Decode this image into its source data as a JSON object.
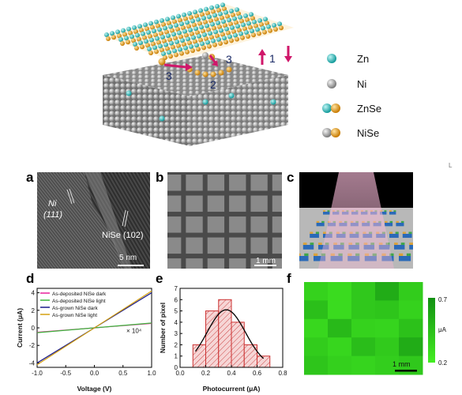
{
  "schematic": {
    "step_labels": [
      "1",
      "2",
      "3",
      "3"
    ],
    "legend": [
      {
        "label": "Zn",
        "icon": "zn-atom-icon"
      },
      {
        "label": "Ni",
        "icon": "ni-atom-icon"
      },
      {
        "label": "ZnSe",
        "icon": "znse-pair-icon"
      },
      {
        "label": "NiSe",
        "icon": "nise-pair-icon"
      }
    ],
    "corner_mark": "L"
  },
  "panels": {
    "a": {
      "letter": "a",
      "text1_line1": "Ni",
      "text1_line2": "(111)",
      "text2": "NiSe (102)",
      "scale": "5 nm"
    },
    "b": {
      "letter": "b",
      "scale": "1 mm"
    },
    "c": {
      "letter": "c"
    },
    "d": {
      "letter": "d"
    },
    "e": {
      "letter": "e"
    },
    "f": {
      "letter": "f",
      "scale": "1 mm",
      "colorbar_max": "0.7",
      "colorbar_min": "0.2",
      "colorbar_unit": "μA"
    }
  },
  "colors": {
    "zn": "#2ec9c9",
    "ni": "#a0a0a0",
    "se": "#f0a020",
    "arrow": "#d0176a",
    "map_low": "#33dd22",
    "map_high": "#1a9e1a"
  },
  "chart_data": [
    {
      "type": "line",
      "panel": "d",
      "xlabel": "Voltage (V)",
      "ylabel": "Current (μA)",
      "xlim": [
        -1.0,
        1.0
      ],
      "ylim": [
        -4.5,
        4.5
      ],
      "xticks": [
        "-1.0",
        "-0.5",
        "0.0",
        "0.5",
        "1.0"
      ],
      "yticks": [
        "-4",
        "-2",
        "0",
        "2",
        "4"
      ],
      "annotation": "× 10⁴",
      "series": [
        {
          "name": "As-deposited NiSe dark",
          "color": "#e8209a",
          "x": [
            -1.0,
            1.0
          ],
          "y": [
            -0.5,
            0.5
          ]
        },
        {
          "name": "As-deposited NiSe light",
          "color": "#3cb43c",
          "x": [
            -1.0,
            1.0
          ],
          "y": [
            -0.55,
            0.55
          ]
        },
        {
          "name": "As-grown NiSe dark",
          "color": "#1a1a8c",
          "x": [
            -1.0,
            1.0
          ],
          "y": [
            -4.0,
            4.0
          ]
        },
        {
          "name": "As-grown NiSe light",
          "color": "#d4a010",
          "x": [
            -1.0,
            1.0
          ],
          "y": [
            -4.2,
            4.2
          ]
        }
      ]
    },
    {
      "type": "bar",
      "panel": "e",
      "xlabel": "Photocurrent (μA)",
      "ylabel": "Number of pixel",
      "xlim": [
        0.0,
        0.8
      ],
      "ylim": [
        0,
        7
      ],
      "xticks": [
        "0.0",
        "0.2",
        "0.4",
        "0.6",
        "0.8"
      ],
      "yticks": [
        "0",
        "1",
        "2",
        "3",
        "4",
        "5",
        "6",
        "7"
      ],
      "bins": [
        0.15,
        0.25,
        0.35,
        0.45,
        0.55,
        0.65
      ],
      "bin_width": 0.1,
      "values": [
        2,
        5,
        6,
        4,
        2,
        1
      ],
      "fit_curve": {
        "type": "gaussian",
        "center": 0.36,
        "amplitude": 5.1,
        "sigma": 0.15
      }
    },
    {
      "type": "heatmap",
      "panel": "f",
      "rows": 5,
      "cols": 5,
      "range": [
        0.2,
        0.7
      ],
      "values": [
        [
          0.35,
          0.3,
          0.4,
          0.55,
          0.38
        ],
        [
          0.45,
          0.3,
          0.4,
          0.42,
          0.35
        ],
        [
          0.32,
          0.48,
          0.35,
          0.34,
          0.44
        ],
        [
          0.38,
          0.33,
          0.46,
          0.39,
          0.55
        ],
        [
          0.42,
          0.36,
          0.34,
          0.37,
          0.4
        ]
      ]
    }
  ]
}
